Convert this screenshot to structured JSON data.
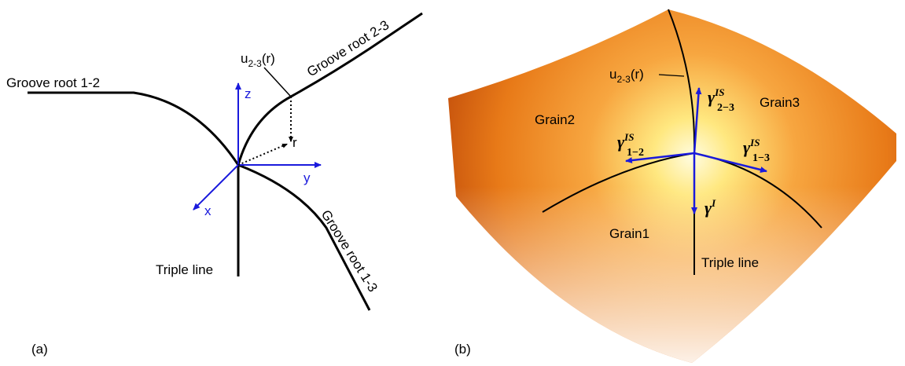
{
  "panel_a": {
    "label": "(a)",
    "groove_roots": [
      "Groove root 1-2",
      "Groove root 2-3",
      "Groove root 1-3"
    ],
    "axes": {
      "x": "x",
      "y": "y",
      "z": "z"
    },
    "r": "r",
    "u_label": {
      "base": "u",
      "sub": "2-3",
      "tail": "(r)"
    },
    "triple_line": "Triple line"
  },
  "panel_b": {
    "label": "(b)",
    "grains": [
      "Grain1",
      "Grain2",
      "Grain3"
    ],
    "u_label": {
      "base": "u",
      "sub": "2-3",
      "tail": "(r)"
    },
    "gammas": [
      {
        "symbol": "γ",
        "sup": "IS",
        "sub": "1−2"
      },
      {
        "symbol": "γ",
        "sup": "IS",
        "sub": "2−3"
      },
      {
        "symbol": "γ",
        "sup": "IS",
        "sub": "1−3"
      },
      {
        "symbol": "γ",
        "sup": "I"
      }
    ],
    "triple_line": "Triple line"
  }
}
